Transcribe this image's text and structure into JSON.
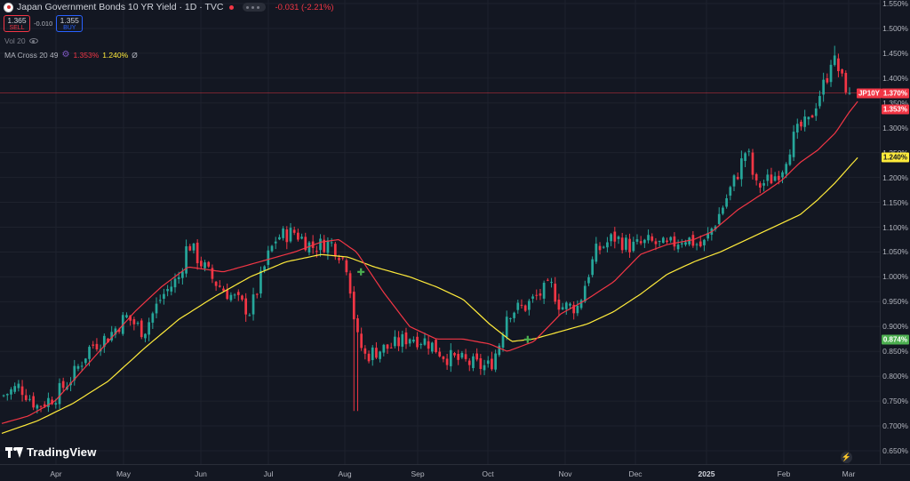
{
  "header": {
    "title": "Japan Government Bonds 10 YR Yield · 1D · TVC",
    "change": "-0.031 (-2.21%)"
  },
  "trade": {
    "sell_value": "1.365",
    "sell_label": "SELL",
    "spread": "-0.010",
    "buy_value": "1.355",
    "buy_label": "BUY"
  },
  "indicators": {
    "vol_label": "Vol 20",
    "ma_label": "MA Cross 20 49",
    "ma_fast_value": "1.353%",
    "ma_slow_value": "1.240%",
    "ma_suffix": "Ø"
  },
  "price_axis": {
    "ticks": [
      "1.550%",
      "1.500%",
      "1.450%",
      "1.400%",
      "1.350%",
      "1.300%",
      "1.250%",
      "1.200%",
      "1.150%",
      "1.100%",
      "1.050%",
      "1.000%",
      "0.950%",
      "0.900%",
      "0.850%",
      "0.800%",
      "0.750%",
      "0.700%",
      "0.650%"
    ],
    "badges": [
      {
        "text": "JP10Y",
        "value": 1.37,
        "bg": "#f23645",
        "fg": "#ffffff",
        "right": 32
      },
      {
        "text": "1.370%",
        "value": 1.37,
        "bg": "#f23645",
        "fg": "#ffffff"
      },
      {
        "text": "1.353%",
        "value": 1.353,
        "bg": "#f23645",
        "fg": "#ffffff",
        "offset": 1
      },
      {
        "text": "1.240%",
        "value": 1.24,
        "bg": "#ffeb3b",
        "fg": "#131722"
      },
      {
        "text": "0.874%",
        "value": 0.874,
        "bg": "#4caf50",
        "fg": "#ffffff"
      }
    ]
  },
  "time_axis": {
    "ticks": [
      {
        "label": "Apr",
        "bold": false
      },
      {
        "label": "May",
        "bold": false
      },
      {
        "label": "Jun",
        "bold": false
      },
      {
        "label": "Jul",
        "bold": false
      },
      {
        "label": "Aug",
        "bold": false
      },
      {
        "label": "Sep",
        "bold": false
      },
      {
        "label": "Oct",
        "bold": false
      },
      {
        "label": "Nov",
        "bold": false
      },
      {
        "label": "Dec",
        "bold": false
      },
      {
        "label": "2025",
        "bold": true
      },
      {
        "label": "Feb",
        "bold": false
      },
      {
        "label": "Mar",
        "bold": false
      }
    ]
  },
  "logo": {
    "text": "TradingView"
  },
  "colors": {
    "up": "#26a69a",
    "down": "#f23645",
    "ma_fast": "#f23645",
    "ma_slow": "#ffeb3b",
    "cross": "#4caf50",
    "background": "#131722"
  },
  "chart_data": {
    "type": "candlestick",
    "x_range": [
      "2024-03-20",
      "2025-02-26"
    ],
    "y_range": [
      0.62,
      1.56
    ],
    "ma_fast_keypoints": [
      [
        0.0,
        0.705
      ],
      [
        0.03,
        0.72
      ],
      [
        0.06,
        0.75
      ],
      [
        0.09,
        0.81
      ],
      [
        0.12,
        0.87
      ],
      [
        0.15,
        0.93
      ],
      [
        0.18,
        0.98
      ],
      [
        0.21,
        1.02
      ],
      [
        0.25,
        1.01
      ],
      [
        0.29,
        1.03
      ],
      [
        0.33,
        1.05
      ],
      [
        0.36,
        1.07
      ],
      [
        0.38,
        1.075
      ],
      [
        0.4,
        1.05
      ],
      [
        0.43,
        0.97
      ],
      [
        0.46,
        0.9
      ],
      [
        0.49,
        0.875
      ],
      [
        0.52,
        0.875
      ],
      [
        0.55,
        0.865
      ],
      [
        0.57,
        0.85
      ],
      [
        0.6,
        0.87
      ],
      [
        0.63,
        0.925
      ],
      [
        0.66,
        0.955
      ],
      [
        0.69,
        0.99
      ],
      [
        0.72,
        1.045
      ],
      [
        0.75,
        1.065
      ],
      [
        0.78,
        1.075
      ],
      [
        0.8,
        1.09
      ],
      [
        0.83,
        1.135
      ],
      [
        0.86,
        1.17
      ],
      [
        0.88,
        1.195
      ],
      [
        0.9,
        1.23
      ],
      [
        0.92,
        1.255
      ],
      [
        0.94,
        1.29
      ],
      [
        0.955,
        1.33
      ],
      [
        0.965,
        1.353
      ]
    ],
    "ma_slow_keypoints": [
      [
        0.0,
        0.685
      ],
      [
        0.04,
        0.71
      ],
      [
        0.08,
        0.745
      ],
      [
        0.12,
        0.79
      ],
      [
        0.16,
        0.855
      ],
      [
        0.2,
        0.915
      ],
      [
        0.24,
        0.96
      ],
      [
        0.28,
        1.0
      ],
      [
        0.32,
        1.03
      ],
      [
        0.36,
        1.045
      ],
      [
        0.39,
        1.04
      ],
      [
        0.42,
        1.02
      ],
      [
        0.46,
        1.0
      ],
      [
        0.49,
        0.98
      ],
      [
        0.52,
        0.955
      ],
      [
        0.55,
        0.905
      ],
      [
        0.575,
        0.87
      ],
      [
        0.6,
        0.875
      ],
      [
        0.63,
        0.89
      ],
      [
        0.66,
        0.905
      ],
      [
        0.69,
        0.93
      ],
      [
        0.72,
        0.965
      ],
      [
        0.75,
        1.005
      ],
      [
        0.78,
        1.03
      ],
      [
        0.81,
        1.05
      ],
      [
        0.84,
        1.075
      ],
      [
        0.87,
        1.1
      ],
      [
        0.9,
        1.125
      ],
      [
        0.92,
        1.155
      ],
      [
        0.94,
        1.19
      ],
      [
        0.965,
        1.24
      ]
    ],
    "close_keypoints": [
      [
        0.0,
        0.76
      ],
      [
        0.02,
        0.78
      ],
      [
        0.04,
        0.74
      ],
      [
        0.06,
        0.76
      ],
      [
        0.08,
        0.8
      ],
      [
        0.1,
        0.86
      ],
      [
        0.12,
        0.88
      ],
      [
        0.14,
        0.92
      ],
      [
        0.16,
        0.89
      ],
      [
        0.18,
        0.96
      ],
      [
        0.2,
        1.0
      ],
      [
        0.21,
        1.07
      ],
      [
        0.22,
        1.04
      ],
      [
        0.24,
        0.99
      ],
      [
        0.26,
        0.96
      ],
      [
        0.28,
        0.93
      ],
      [
        0.3,
        1.04
      ],
      [
        0.31,
        1.08
      ],
      [
        0.33,
        1.09
      ],
      [
        0.35,
        1.06
      ],
      [
        0.37,
        1.07
      ],
      [
        0.38,
        1.05
      ],
      [
        0.39,
        1.02
      ],
      [
        0.4,
        0.88
      ],
      [
        0.41,
        0.84
      ],
      [
        0.42,
        0.85
      ],
      [
        0.44,
        0.86
      ],
      [
        0.46,
        0.88
      ],
      [
        0.48,
        0.87
      ],
      [
        0.5,
        0.84
      ],
      [
        0.52,
        0.83
      ],
      [
        0.54,
        0.82
      ],
      [
        0.55,
        0.82
      ],
      [
        0.56,
        0.86
      ],
      [
        0.57,
        0.93
      ],
      [
        0.59,
        0.94
      ],
      [
        0.61,
        0.97
      ],
      [
        0.62,
        0.98
      ],
      [
        0.63,
        0.94
      ],
      [
        0.65,
        0.94
      ],
      [
        0.66,
        1.0
      ],
      [
        0.67,
        1.05
      ],
      [
        0.69,
        1.08
      ],
      [
        0.71,
        1.06
      ],
      [
        0.73,
        1.07
      ],
      [
        0.75,
        1.06
      ],
      [
        0.77,
        1.08
      ],
      [
        0.79,
        1.06
      ],
      [
        0.81,
        1.13
      ],
      [
        0.83,
        1.21
      ],
      [
        0.84,
        1.26
      ],
      [
        0.85,
        1.18
      ],
      [
        0.87,
        1.2
      ],
      [
        0.88,
        1.22
      ],
      [
        0.89,
        1.27
      ],
      [
        0.9,
        1.3
      ],
      [
        0.91,
        1.31
      ],
      [
        0.92,
        1.36
      ],
      [
        0.93,
        1.4
      ],
      [
        0.935,
        1.44
      ],
      [
        0.94,
        1.43
      ],
      [
        0.945,
        1.41
      ],
      [
        0.95,
        1.38
      ],
      [
        0.955,
        1.39
      ],
      [
        0.965,
        1.37
      ]
    ],
    "cross_markers": [
      [
        0.405,
        1.01
      ],
      [
        0.593,
        0.874
      ]
    ],
    "last_price": 1.37
  }
}
